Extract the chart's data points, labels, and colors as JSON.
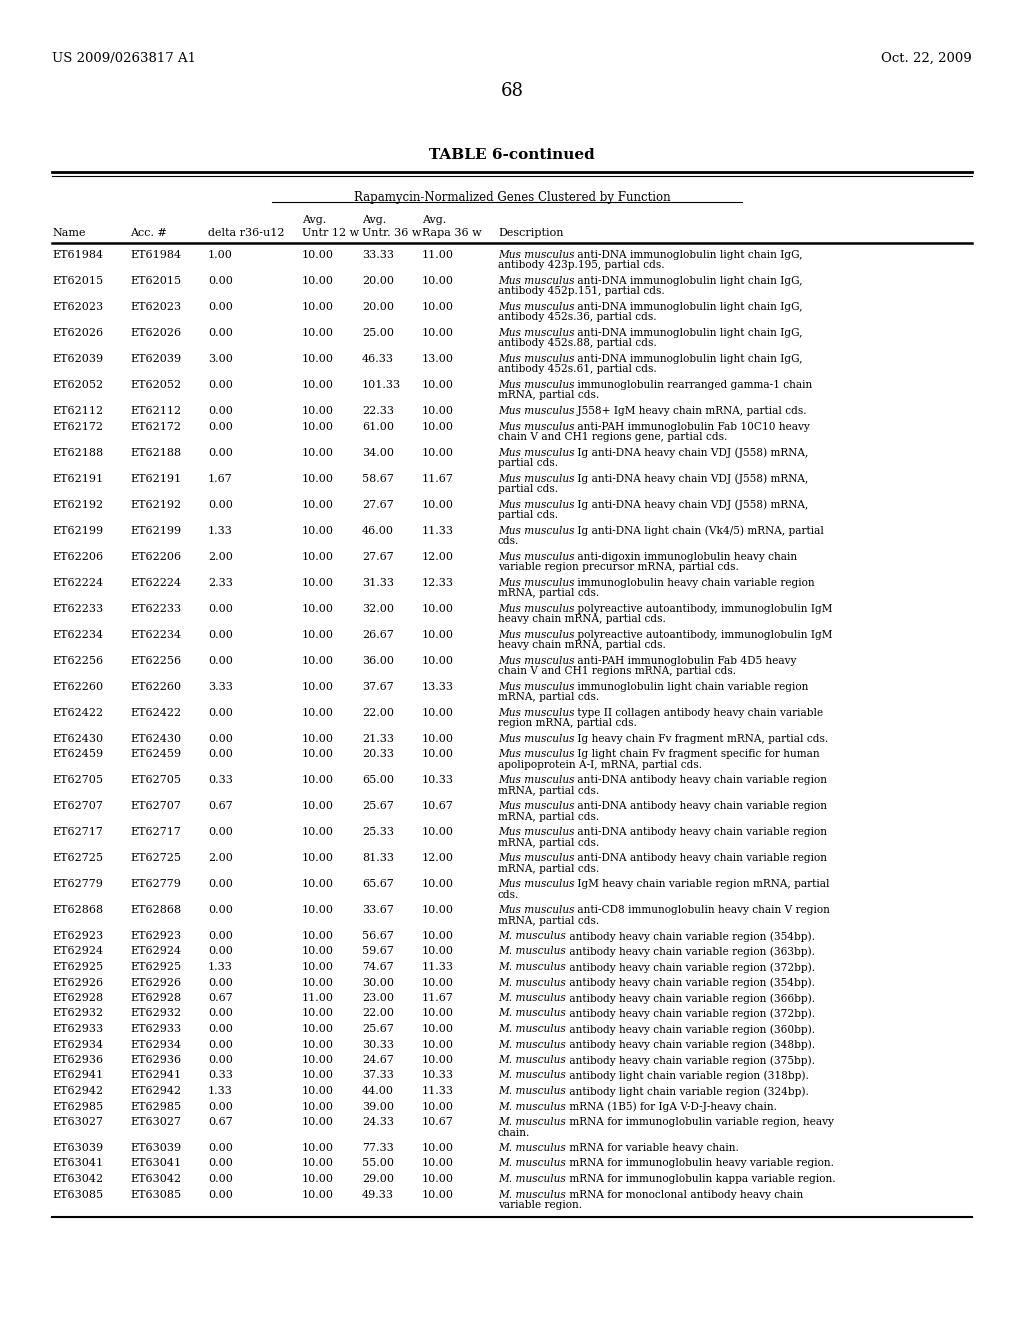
{
  "header_left": "US 2009/0263817 A1",
  "header_right": "Oct. 22, 2009",
  "page_number": "68",
  "table_title": "TABLE 6-continued",
  "subtitle": "Rapamycin-Normalized Genes Clustered by Function",
  "rows": [
    [
      "ET61984",
      "ET61984",
      "1.00",
      "10.00",
      "33.33",
      "11.00",
      "Mus musculus anti-DNA immunoglobulin light chain IgG,\nantibody 423p.195, partial cds."
    ],
    [
      "ET62015",
      "ET62015",
      "0.00",
      "10.00",
      "20.00",
      "10.00",
      "Mus musculus anti-DNA immunoglobulin light chain IgG,\nantibody 452p.151, partial cds."
    ],
    [
      "ET62023",
      "ET62023",
      "0.00",
      "10.00",
      "20.00",
      "10.00",
      "Mus musculus anti-DNA immunoglobulin light chain IgG,\nantibody 452s.36, partial cds."
    ],
    [
      "ET62026",
      "ET62026",
      "0.00",
      "10.00",
      "25.00",
      "10.00",
      "Mus musculus anti-DNA immunoglobulin light chain IgG,\nantibody 452s.88, partial cds."
    ],
    [
      "ET62039",
      "ET62039",
      "3.00",
      "10.00",
      "46.33",
      "13.00",
      "Mus musculus anti-DNA immunoglobulin light chain IgG,\nantibody 452s.61, partial cds."
    ],
    [
      "ET62052",
      "ET62052",
      "0.00",
      "10.00",
      "101.33",
      "10.00",
      "Mus musculus immunoglobulin rearranged gamma-1 chain\nmRNA, partial cds."
    ],
    [
      "ET62112",
      "ET62112",
      "0.00",
      "10.00",
      "22.33",
      "10.00",
      "Mus musculus J558+ IgM heavy chain mRNA, partial cds."
    ],
    [
      "ET62172",
      "ET62172",
      "0.00",
      "10.00",
      "61.00",
      "10.00",
      "Mus musculus anti-PAH immunoglobulin Fab 10C10 heavy\nchain V and CH1 regions gene, partial cds."
    ],
    [
      "ET62188",
      "ET62188",
      "0.00",
      "10.00",
      "34.00",
      "10.00",
      "Mus musculus Ig anti-DNA heavy chain VDJ (J558) mRNA,\npartial cds."
    ],
    [
      "ET62191",
      "ET62191",
      "1.67",
      "10.00",
      "58.67",
      "11.67",
      "Mus musculus Ig anti-DNA heavy chain VDJ (J558) mRNA,\npartial cds."
    ],
    [
      "ET62192",
      "ET62192",
      "0.00",
      "10.00",
      "27.67",
      "10.00",
      "Mus musculus Ig anti-DNA heavy chain VDJ (J558) mRNA,\npartial cds."
    ],
    [
      "ET62199",
      "ET62199",
      "1.33",
      "10.00",
      "46.00",
      "11.33",
      "Mus musculus Ig anti-DNA light chain (Vk4/5) mRNA, partial\ncds."
    ],
    [
      "ET62206",
      "ET62206",
      "2.00",
      "10.00",
      "27.67",
      "12.00",
      "Mus musculus anti-digoxin immunoglobulin heavy chain\nvariable region precursor mRNA, partial cds."
    ],
    [
      "ET62224",
      "ET62224",
      "2.33",
      "10.00",
      "31.33",
      "12.33",
      "Mus musculus immunoglobulin heavy chain variable region\nmRNA, partial cds."
    ],
    [
      "ET62233",
      "ET62233",
      "0.00",
      "10.00",
      "32.00",
      "10.00",
      "Mus musculus polyreactive autoantibody, immunoglobulin IgM\nheavy chain mRNA, partial cds."
    ],
    [
      "ET62234",
      "ET62234",
      "0.00",
      "10.00",
      "26.67",
      "10.00",
      "Mus musculus polyreactive autoantibody, immunoglobulin IgM\nheavy chain mRNA, partial cds."
    ],
    [
      "ET62256",
      "ET62256",
      "0.00",
      "10.00",
      "36.00",
      "10.00",
      "Mus musculus anti-PAH immunoglobulin Fab 4D5 heavy\nchain V and CH1 regions mRNA, partial cds."
    ],
    [
      "ET62260",
      "ET62260",
      "3.33",
      "10.00",
      "37.67",
      "13.33",
      "Mus musculus immunoglobulin light chain variable region\nmRNA, partial cds."
    ],
    [
      "ET62422",
      "ET62422",
      "0.00",
      "10.00",
      "22.00",
      "10.00",
      "Mus musculus type II collagen antibody heavy chain variable\nregion mRNA, partial cds."
    ],
    [
      "ET62430",
      "ET62430",
      "0.00",
      "10.00",
      "21.33",
      "10.00",
      "Mus musculus Ig heavy chain Fv fragment mRNA, partial cds."
    ],
    [
      "ET62459",
      "ET62459",
      "0.00",
      "10.00",
      "20.33",
      "10.00",
      "Mus musculus Ig light chain Fv fragment specific for human\napolipoprotein A-I, mRNA, partial cds."
    ],
    [
      "ET62705",
      "ET62705",
      "0.33",
      "10.00",
      "65.00",
      "10.33",
      "Mus musculus anti-DNA antibody heavy chain variable region\nmRNA, partial cds."
    ],
    [
      "ET62707",
      "ET62707",
      "0.67",
      "10.00",
      "25.67",
      "10.67",
      "Mus musculus anti-DNA antibody heavy chain variable region\nmRNA, partial cds."
    ],
    [
      "ET62717",
      "ET62717",
      "0.00",
      "10.00",
      "25.33",
      "10.00",
      "Mus musculus anti-DNA antibody heavy chain variable region\nmRNA, partial cds."
    ],
    [
      "ET62725",
      "ET62725",
      "2.00",
      "10.00",
      "81.33",
      "12.00",
      "Mus musculus anti-DNA antibody heavy chain variable region\nmRNA, partial cds."
    ],
    [
      "ET62779",
      "ET62779",
      "0.00",
      "10.00",
      "65.67",
      "10.00",
      "Mus musculus IgM heavy chain variable region mRNA, partial\ncds."
    ],
    [
      "ET62868",
      "ET62868",
      "0.00",
      "10.00",
      "33.67",
      "10.00",
      "Mus musculus anti-CD8 immunoglobulin heavy chain V region\nmRNA, partial cds."
    ],
    [
      "ET62923",
      "ET62923",
      "0.00",
      "10.00",
      "56.67",
      "10.00",
      "M. musculus antibody heavy chain variable region (354bp)."
    ],
    [
      "ET62924",
      "ET62924",
      "0.00",
      "10.00",
      "59.67",
      "10.00",
      "M. musculus antibody heavy chain variable region (363bp)."
    ],
    [
      "ET62925",
      "ET62925",
      "1.33",
      "10.00",
      "74.67",
      "11.33",
      "M. musculus antibody heavy chain variable region (372bp)."
    ],
    [
      "ET62926",
      "ET62926",
      "0.00",
      "10.00",
      "30.00",
      "10.00",
      "M. musculus antibody heavy chain variable region (354bp)."
    ],
    [
      "ET62928",
      "ET62928",
      "0.67",
      "11.00",
      "23.00",
      "11.67",
      "M. musculus antibody heavy chain variable region (366bp)."
    ],
    [
      "ET62932",
      "ET62932",
      "0.00",
      "10.00",
      "22.00",
      "10.00",
      "M. musculus antibody heavy chain variable region (372bp)."
    ],
    [
      "ET62933",
      "ET62933",
      "0.00",
      "10.00",
      "25.67",
      "10.00",
      "M. musculus antibody heavy chain variable region (360bp)."
    ],
    [
      "ET62934",
      "ET62934",
      "0.00",
      "10.00",
      "30.33",
      "10.00",
      "M. musculus antibody heavy chain variable region (348bp)."
    ],
    [
      "ET62936",
      "ET62936",
      "0.00",
      "10.00",
      "24.67",
      "10.00",
      "M. musculus antibody heavy chain variable region (375bp)."
    ],
    [
      "ET62941",
      "ET62941",
      "0.33",
      "10.00",
      "37.33",
      "10.33",
      "M. musculus antibody light chain variable region (318bp)."
    ],
    [
      "ET62942",
      "ET62942",
      "1.33",
      "10.00",
      "44.00",
      "11.33",
      "M. musculus antibody light chain variable region (324bp)."
    ],
    [
      "ET62985",
      "ET62985",
      "0.00",
      "10.00",
      "39.00",
      "10.00",
      "M. musculus mRNA (1B5) for IgA V-D-J-heavy chain."
    ],
    [
      "ET63027",
      "ET63027",
      "0.67",
      "10.00",
      "24.33",
      "10.67",
      "M. musculus mRNA for immunoglobulin variable region, heavy\nchain."
    ],
    [
      "ET63039",
      "ET63039",
      "0.00",
      "10.00",
      "77.33",
      "10.00",
      "M. musculus mRNA for variable heavy chain."
    ],
    [
      "ET63041",
      "ET63041",
      "0.00",
      "10.00",
      "55.00",
      "10.00",
      "M. musculus mRNA for immunoglobulin heavy variable region."
    ],
    [
      "ET63042",
      "ET63042",
      "0.00",
      "10.00",
      "29.00",
      "10.00",
      "M. musculus mRNA for immunoglobulin kappa variable region."
    ],
    [
      "ET63085",
      "ET63085",
      "0.00",
      "10.00",
      "49.33",
      "10.00",
      "M. musculus mRNA for monoclonal antibody heavy chain\nvariable region."
    ]
  ]
}
